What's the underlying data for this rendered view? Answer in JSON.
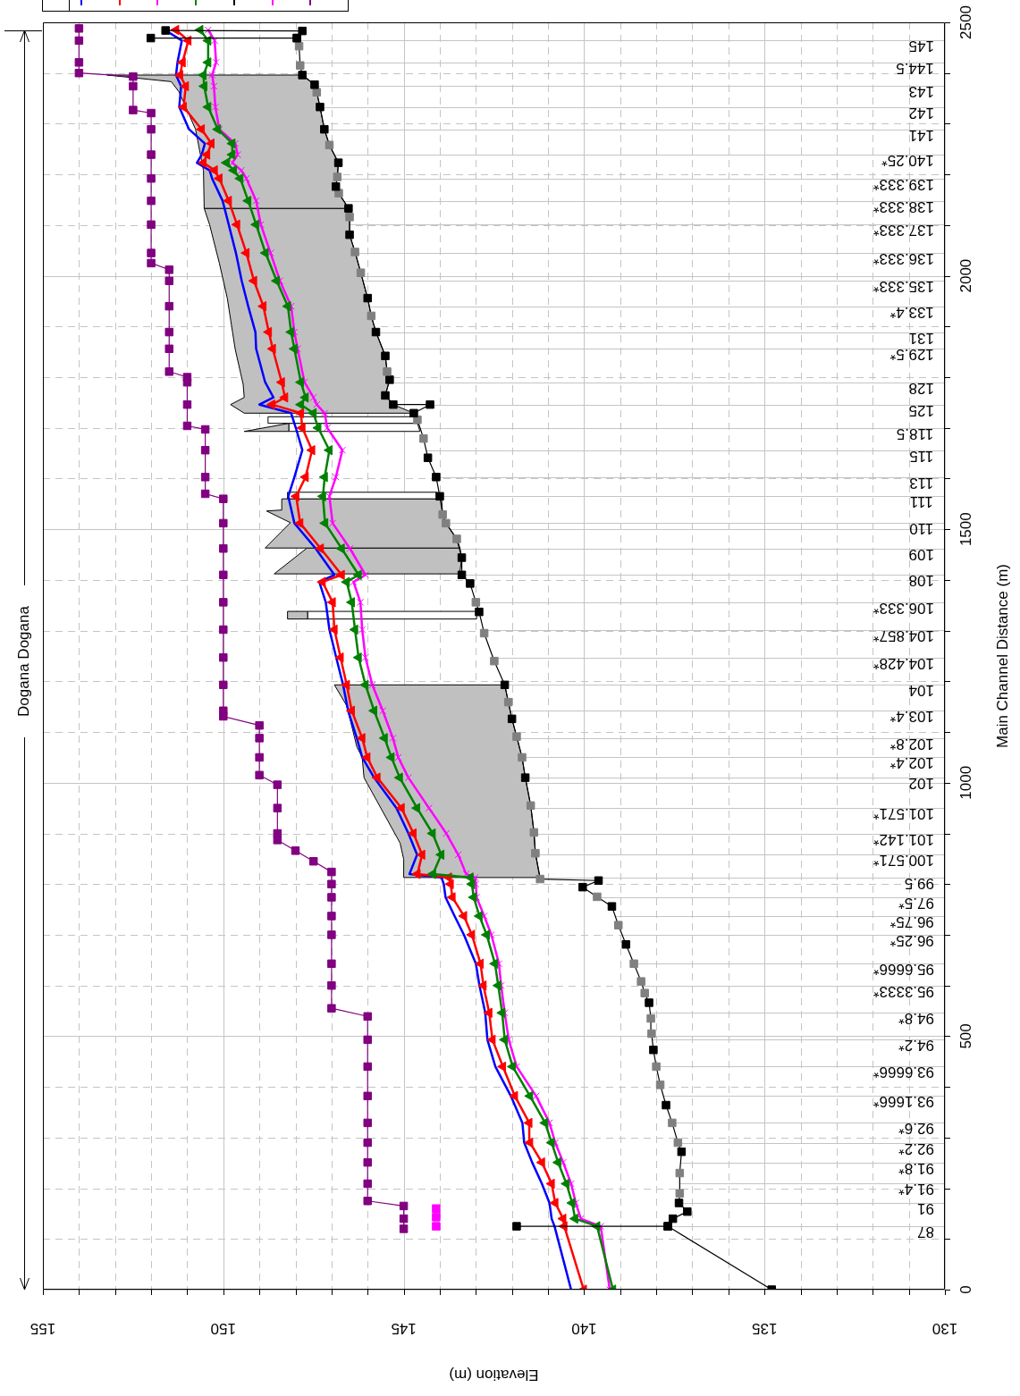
{
  "chart_data": {
    "type": "line",
    "xlabel": "Elevation (m)",
    "ylabel": "Main Channel Distance (m)",
    "annotations": [
      "Dogana Dogana",
      {
        "text": "87",
        "x": 130.53,
        "y": 125
      },
      {
        "text": "91",
        "x": 130.53,
        "y": 171
      },
      {
        "text": "91.4*",
        "x": 130.79,
        "y": 209
      },
      {
        "text": "91.8*",
        "x": 130.79,
        "y": 251
      },
      {
        "text": "92.2*",
        "x": 130.79,
        "y": 290
      },
      {
        "text": "92.6*",
        "x": 130.79,
        "y": 329
      },
      {
        "text": "93.1666*",
        "x": 131.14,
        "y": 382
      },
      {
        "text": "93.6666*",
        "x": 131.14,
        "y": 440
      },
      {
        "text": "94.2*",
        "x": 130.79,
        "y": 493
      },
      {
        "text": "94.8*",
        "x": 130.79,
        "y": 546
      },
      {
        "text": "95.3333*",
        "x": 131.14,
        "y": 600
      },
      {
        "text": "95.6666*",
        "x": 131.14,
        "y": 643
      },
      {
        "text": "96.25*",
        "x": 130.91,
        "y": 700
      },
      {
        "text": "96.75*",
        "x": 130.91,
        "y": 737
      },
      {
        "text": "97.5*",
        "x": 130.79,
        "y": 774
      },
      {
        "text": "99.5",
        "x": 130.71,
        "y": 813
      },
      {
        "text": "100.571*",
        "x": 131.14,
        "y": 858
      },
      {
        "text": "101.142*",
        "x": 131.14,
        "y": 900
      },
      {
        "text": "101.571*",
        "x": 131.14,
        "y": 950
      },
      {
        "text": "102",
        "x": 130.65,
        "y": 1010
      },
      {
        "text": "102.4*",
        "x": 130.91,
        "y": 1050
      },
      {
        "text": "102.8*",
        "x": 130.91,
        "y": 1088
      },
      {
        "text": "103.4*",
        "x": 130.91,
        "y": 1142
      },
      {
        "text": "104",
        "x": 130.65,
        "y": 1193
      },
      {
        "text": "104.428*",
        "x": 131.14,
        "y": 1247
      },
      {
        "text": "104.857*",
        "x": 131.14,
        "y": 1302
      },
      {
        "text": "106.333*",
        "x": 131.14,
        "y": 1356
      },
      {
        "text": "108",
        "x": 130.65,
        "y": 1410
      },
      {
        "text": "109",
        "x": 130.65,
        "y": 1462
      },
      {
        "text": "110",
        "x": 130.65,
        "y": 1512
      },
      {
        "text": "111",
        "x": 130.65,
        "y": 1565
      },
      {
        "text": "113",
        "x": 130.65,
        "y": 1603
      },
      {
        "text": "115",
        "x": 130.65,
        "y": 1656
      },
      {
        "text": "118.5",
        "x": 130.83,
        "y": 1700
      },
      {
        "text": "125",
        "x": 130.65,
        "y": 1746
      },
      {
        "text": "128",
        "x": 130.65,
        "y": 1790
      },
      {
        "text": "129.5*",
        "x": 130.91,
        "y": 1856
      },
      {
        "text": "131",
        "x": 130.65,
        "y": 1889
      },
      {
        "text": "133.4*",
        "x": 130.91,
        "y": 1940
      },
      {
        "text": "135.333*",
        "x": 131.14,
        "y": 1990
      },
      {
        "text": "136.333*",
        "x": 131.14,
        "y": 2045
      },
      {
        "text": "137.333*",
        "x": 131.14,
        "y": 2101
      },
      {
        "text": "138.333*",
        "x": 131.14,
        "y": 2148
      },
      {
        "text": "139.333*",
        "x": 131.14,
        "y": 2192
      },
      {
        "text": "140.25*",
        "x": 131.03,
        "y": 2239
      },
      {
        "text": "141",
        "x": 130.65,
        "y": 2289
      },
      {
        "text": "142",
        "x": 130.65,
        "y": 2333
      },
      {
        "text": "143",
        "x": 130.65,
        "y": 2374
      },
      {
        "text": "144.5",
        "x": 130.83,
        "y": 2421
      },
      {
        "text": "145",
        "x": 130.65,
        "y": 2464
      }
    ],
    "series": [
      {
        "color": "#0000ff",
        "marker": "none",
        "x": [
          140.36,
          140.82,
          140.9,
          140.96,
          141.17,
          141.44,
          141.66,
          141.71,
          142.03,
          142.46,
          142.68,
          142.74,
          142.9,
          143.0,
          143.33,
          143.59,
          143.84,
          143.89,
          143.95,
          144.84,
          144.63,
          144.87,
          145.2,
          145.82,
          146.15,
          146.3,
          146.54,
          146.68,
          146.87,
          147.06,
          147.16,
          147.34,
          146.92,
          147.44,
          148.03,
          148.2,
          148.03,
          147.81,
          147.99,
          148.12,
          149.0,
          148.61,
          148.84,
          149.09,
          149.11,
          149.31,
          149.49,
          149.65,
          149.85,
          150.02,
          150.31,
          150.38,
          150.73,
          150.6,
          150.51,
          150.95,
          151.22,
          151.17,
          151.31,
          151.27,
          151.15,
          151.62
        ],
        "values": [
          0,
          125,
          140,
          171,
          209,
          251,
          290,
          329,
          382,
          440,
          493,
          546,
          600,
          643,
          700,
          737,
          774,
          800,
          813,
          820,
          858,
          900,
          950,
          1010,
          1050,
          1088,
          1142,
          1193,
          1247,
          1302,
          1356,
          1396,
          1410,
          1462,
          1512,
          1565,
          1603,
          1656,
          1700,
          1729,
          1746,
          1760,
          1790,
          1856,
          1889,
          1940,
          1990,
          2045,
          2101,
          2148,
          2192,
          2208,
          2223,
          2239,
          2261,
          2289,
          2333,
          2374,
          2396,
          2421,
          2464,
          2485
        ]
      },
      {
        "color": "#ff0000",
        "marker": "triangle",
        "x": [
          140.01,
          140.55,
          140.58,
          140.8,
          140.9,
          141.17,
          141.5,
          141.52,
          141.92,
          142.25,
          142.54,
          142.63,
          142.79,
          142.87,
          143.11,
          143.33,
          143.65,
          143.7,
          143.75,
          144.62,
          144.49,
          144.73,
          145.06,
          145.73,
          146.01,
          146.15,
          146.44,
          146.58,
          146.75,
          146.92,
          146.97,
          147.25,
          146.72,
          147.3,
          147.87,
          147.98,
          147.72,
          147.54,
          147.81,
          147.85,
          148.65,
          148.29,
          148.38,
          148.63,
          148.74,
          148.89,
          149.15,
          149.36,
          149.62,
          149.85,
          150.11,
          150.24,
          150.55,
          150.45,
          150.33,
          150.6,
          151.1,
          151.04,
          151.2,
          151.13,
          150.97,
          151.31
        ],
        "values": [
          0,
          125,
          140,
          171,
          209,
          251,
          290,
          329,
          382,
          440,
          493,
          546,
          600,
          643,
          700,
          737,
          774,
          800,
          813,
          820,
          858,
          900,
          950,
          1010,
          1050,
          1088,
          1142,
          1193,
          1247,
          1302,
          1356,
          1396,
          1410,
          1462,
          1512,
          1565,
          1603,
          1656,
          1700,
          1729,
          1746,
          1760,
          1790,
          1856,
          1889,
          1940,
          1990,
          2045,
          2101,
          2148,
          2192,
          2208,
          2223,
          2239,
          2261,
          2289,
          2333,
          2374,
          2396,
          2421,
          2464,
          2485
        ]
      },
      {
        "color": "#ff00ff",
        "marker": "cross",
        "x": [
          139.29,
          139.54,
          140.09,
          140.23,
          140.36,
          140.58,
          140.8,
          140.96,
          141.33,
          141.87,
          142.09,
          142.2,
          142.3,
          142.36,
          142.57,
          142.77,
          142.98,
          143.0,
          143.02,
          143.27,
          143.49,
          143.82,
          144.3,
          144.87,
          145.15,
          145.3,
          145.58,
          145.87,
          146.06,
          146.15,
          146.2,
          146.39,
          146.06,
          146.49,
          146.97,
          147.06,
          146.88,
          146.7,
          147.12,
          147.19,
          147.41,
          147.5,
          147.75,
          147.94,
          148.03,
          148.12,
          148.43,
          148.69,
          148.96,
          149.09,
          149.36,
          149.5,
          149.75,
          149.6,
          149.67,
          150.11,
          150.22,
          150.26,
          150.31,
          150.2,
          150.24,
          150.42
        ],
        "values": [
          0,
          125,
          140,
          171,
          209,
          251,
          290,
          329,
          382,
          440,
          493,
          546,
          600,
          643,
          700,
          737,
          774,
          800,
          813,
          820,
          858,
          900,
          950,
          1010,
          1050,
          1088,
          1142,
          1193,
          1247,
          1302,
          1356,
          1396,
          1410,
          1462,
          1512,
          1565,
          1603,
          1656,
          1700,
          1729,
          1746,
          1760,
          1790,
          1856,
          1889,
          1940,
          1990,
          2045,
          2101,
          2148,
          2192,
          2208,
          2223,
          2239,
          2261,
          2289,
          2333,
          2374,
          2396,
          2421,
          2464,
          2485
        ]
      },
      {
        "color": "#008000",
        "marker": "triangle",
        "x": [
          139.2,
          139.64,
          140.25,
          140.33,
          140.49,
          140.72,
          140.9,
          141.08,
          141.5,
          141.98,
          142.2,
          142.27,
          142.38,
          142.47,
          142.7,
          142.9,
          143.06,
          143.11,
          143.15,
          144.19,
          143.96,
          144.2,
          144.63,
          145.11,
          145.34,
          145.53,
          145.82,
          146.06,
          146.25,
          146.35,
          146.44,
          146.58,
          146.25,
          146.72,
          147.18,
          147.24,
          147.19,
          147.06,
          147.37,
          147.5,
          147.85,
          147.72,
          147.85,
          148.03,
          148.12,
          148.21,
          148.52,
          148.83,
          149.09,
          149.31,
          149.53,
          149.71,
          149.91,
          149.75,
          149.75,
          150.15,
          150.42,
          150.53,
          150.55,
          150.42,
          150.42,
          150.64
        ],
        "values": [
          0,
          125,
          140,
          171,
          209,
          251,
          290,
          329,
          382,
          440,
          493,
          546,
          600,
          643,
          700,
          737,
          774,
          800,
          813,
          820,
          858,
          900,
          950,
          1010,
          1050,
          1088,
          1142,
          1193,
          1247,
          1302,
          1356,
          1396,
          1410,
          1462,
          1512,
          1565,
          1603,
          1656,
          1700,
          1729,
          1746,
          1760,
          1790,
          1856,
          1889,
          1940,
          1990,
          2045,
          2101,
          2148,
          2192,
          2208,
          2223,
          2239,
          2261,
          2289,
          2333,
          2374,
          2396,
          2421,
          2464,
          2485
        ]
      },
      {
        "color": "#000000",
        "marker": "square",
        "x": [
          134.8,
          137.68,
          141.87,
          137.68,
          137.54,
          137.14,
          137.37,
          137.35,
          137.35,
          137.3,
          137.4,
          137.56,
          137.73,
          137.89,
          138.0,
          138.08,
          138.13,
          138.15,
          138.2,
          138.32,
          138.42,
          138.62,
          138.84,
          139.05,
          139.23,
          139.64,
          140.04,
          139.6,
          141.22,
          141.35,
          141.39,
          141.48,
          141.63,
          141.72,
          141.87,
          142.0,
          142.1,
          142.2,
          142.49,
          142.77,
          142.91,
          143.0,
          143.16,
          143.39,
          143.39,
          143.53,
          143.83,
          143.92,
          144.0,
          144.1,
          144.33,
          144.45,
          144.62,
          144.72,
          144.27,
          145.29,
          145.51,
          145.39,
          145.46,
          145.51,
          145.77,
          145.9,
          146.0,
          146.19,
          146.35,
          146.5,
          146.5,
          146.53,
          146.8,
          146.88,
          146.84,
          146.81,
          147.06,
          147.2,
          147.32,
          147.41,
          147.47,
          147.81,
          147.87,
          147.9,
          147.96,
          152.01,
          147.96,
          147.81,
          151.6
        ],
        "values": [
          0,
          125,
          125,
          125,
          140,
          154,
          171,
          190,
          230,
          272,
          290,
          329,
          364,
          404,
          440,
          473,
          505,
          535,
          566,
          585,
          608,
          643,
          681,
          719,
          756,
          775,
          794,
          807,
          810,
          861,
          902,
          955,
          1010,
          1050,
          1091,
          1126,
          1159,
          1193,
          1240,
          1295,
          1337,
          1356,
          1393,
          1410,
          1444,
          1481,
          1512,
          1529,
          1565,
          1603,
          1641,
          1679,
          1716,
          1729,
          1746,
          1746,
          1764,
          1795,
          1811,
          1842,
          1889,
          1921,
          1956,
          2006,
          2047,
          2081,
          2116,
          2133,
          2163,
          2176,
          2195,
          2223,
          2258,
          2289,
          2333,
          2362,
          2377,
          2396,
          2415,
          2453,
          2469,
          2469,
          2469,
          2483,
          2484
        ],
        "colors": [
          "#000000",
          "#000000",
          "#000000",
          "#000000",
          "#000000",
          "#000000",
          "#000000",
          "#808080",
          "#808080",
          "#000000",
          "#808080",
          "#808080",
          "#000000",
          "#808080",
          "#808080",
          "#000000",
          "#808080",
          "#808080",
          "#000000",
          "#808080",
          "#808080",
          "#808080",
          "#000000",
          "#808080",
          "#000000",
          "#808080",
          "#000000",
          "#000000",
          "#808080",
          "#808080",
          "#808080",
          "#808080",
          "#000000",
          "#808080",
          "#808080",
          "#000000",
          "#808080",
          "#000000",
          "#808080",
          "#808080",
          "#000000",
          "#808080",
          "#000000",
          "#000000",
          "#000000",
          "#808080",
          "#808080",
          "#808080",
          "#000000",
          "#000000",
          "#000000",
          "#808080",
          "#808080",
          "#000000",
          "#000000",
          "#000000",
          "#000000",
          "#000000",
          "#808080",
          "#000000",
          "#000000",
          "#808080",
          "#000000",
          "#808080",
          "#808080",
          "#000000",
          "#808080",
          "#000000",
          "#808080",
          "#000000",
          "#808080",
          "#000000",
          "#808080",
          "#000000",
          "#000000",
          "#808080",
          "#000000",
          "#000000",
          "#808080",
          "#808080",
          "#000000",
          "#000000",
          "#000000",
          "#000000",
          "#000000"
        ]
      },
      {
        "type": "scatter",
        "color": "#ff00ff",
        "marker": "square",
        "x": [
          144.1,
          144.1,
          144.1
        ],
        "values": [
          125,
          143,
          160
        ]
      },
      {
        "color": "#800080",
        "marker": "square",
        "x": [
          145,
          145,
          145,
          146,
          146,
          146,
          146,
          146,
          146,
          146,
          146,
          146,
          147,
          147,
          147,
          147,
          147,
          147,
          147,
          147,
          147.5,
          148,
          148.5,
          148.5,
          148.5,
          148.5,
          149,
          149,
          149,
          149,
          150,
          150,
          150,
          150,
          150,
          150,
          150,
          150,
          150,
          150,
          150.5,
          150.5,
          150.5,
          150.5,
          151,
          151,
          151,
          151,
          151.5,
          151.5,
          151.5,
          151.5,
          151.5,
          151.5,
          152,
          152,
          152,
          152,
          152,
          152,
          152,
          152,
          152.5,
          152.5,
          152.5,
          154,
          154,
          154,
          154
        ],
        "values": [
          120,
          140,
          165,
          175,
          209,
          251,
          290,
          329,
          382,
          440,
          493,
          539,
          555,
          600,
          643,
          700,
          737,
          774,
          800,
          824,
          845,
          866,
          887,
          900,
          950,
          996,
          1015,
          1050,
          1088,
          1113,
          1131,
          1142,
          1193,
          1247,
          1302,
          1356,
          1410,
          1462,
          1512,
          1560,
          1570,
          1603,
          1656,
          1697,
          1704,
          1746,
          1790,
          1800,
          1811,
          1856,
          1889,
          1940,
          1990,
          2012,
          2025,
          2045,
          2101,
          2148,
          2192,
          2239,
          2289,
          2321,
          2327,
          2374,
          2393,
          2400,
          2421,
          2464,
          2488
        ]
      },
      {
        "type": "area",
        "color": "#c0c0c0",
        "x": [
          145.0,
          145.0,
          145.1,
          146.1,
          146.15,
          146.3,
          146.58,
          146.92,
          142.2,
          142.1,
          142.0,
          141.87,
          141.72,
          141.63,
          141.48,
          141.39,
          141.35,
          141.22
        ],
        "values": [
          813,
          849,
          881,
          1010,
          1050,
          1071,
          1152,
          1193,
          1193,
          1159,
          1126,
          1091,
          1050,
          1010,
          955,
          902,
          861,
          813
        ]
      },
      {
        "type": "area",
        "color": "#c0c0c0",
        "x": [
          147.68,
          148.59,
          143.45,
          143.39,
          143.44
        ],
        "values": [
          1463,
          1412,
          1412,
          1444,
          1463
        ]
      },
      {
        "type": "area",
        "color": "#c0c0c0",
        "x": [
          148.38,
          148.38,
          148.8,
          148.14,
          148.84,
          143.44,
          143.53,
          143.83,
          143.92,
          143.95
        ],
        "values": [
          1560,
          1538,
          1536,
          1513,
          1463,
          1463,
          1481,
          1512,
          1529,
          1560
        ]
      },
      {
        "type": "area",
        "color": "#c0c0c0",
        "x": [
          148.22,
          147.66,
          147.66,
          148.22
        ],
        "values": [
          1338,
          1338,
          1323,
          1323
        ]
      },
      {
        "type": "area",
        "color": "#ffffff",
        "x": [
          147.66,
          142.98,
          142.98,
          147.66
        ],
        "values": [
          1338,
          1338,
          1323,
          1323
        ]
      },
      {
        "type": "area",
        "color": "#ffffff",
        "x": [
          148.22,
          144.08,
          144.08,
          148.22
        ],
        "values": [
          1573,
          1573,
          1560,
          1560
        ]
      },
      {
        "type": "area",
        "color": "#c0c0c0",
        "x": [
          149.42,
          148.18,
          148.18
        ],
        "values": [
          1693,
          1709,
          1693
        ]
      },
      {
        "type": "area",
        "color": "#ffffff",
        "x": [
          148.18,
          144.62,
          144.55,
          148.18
        ],
        "values": [
          1709,
          1709,
          1693,
          1693
        ]
      },
      {
        "type": "area",
        "color": "#ffffff",
        "x": [
          148.76,
          144.68,
          144.62,
          148.76
        ],
        "values": [
          1722,
          1722,
          1709,
          1709
        ]
      },
      {
        "type": "area",
        "color": "#c0c0c0",
        "x": [
          149.42,
          149.8,
          149.42,
          149.45,
          149.67,
          149.89,
          150.11,
          150.38,
          150.53,
          146.53,
          146.5,
          146.5,
          146.35,
          146.19,
          146.0,
          145.9,
          145.77,
          145.51,
          145.46,
          145.39,
          145.51,
          145.29,
          144.72
        ],
        "values": [
          1729,
          1746,
          1760,
          1786,
          1855,
          1956,
          2025,
          2101,
          2133,
          2133,
          2116,
          2081,
          2047,
          2006,
          1956,
          1921,
          1889,
          1842,
          1811,
          1795,
          1764,
          1746,
          1729
        ]
      },
      {
        "type": "area",
        "color": "#c0c0c0",
        "x": [
          150.53,
          150.55,
          150.77,
          151.04,
          151.23,
          151.44,
          153.22,
          147.81,
          147.47,
          147.41,
          147.32,
          147.2,
          147.06,
          146.81,
          146.84,
          146.88,
          146.8,
          146.53
        ],
        "values": [
          2133,
          2208,
          2289,
          2333,
          2363,
          2383,
          2396,
          2396,
          2377,
          2362,
          2333,
          2289,
          2258,
          2223,
          2195,
          2176,
          2163,
          2133
        ]
      }
    ],
    "xlim": [
      155,
      130
    ],
    "xticks": [
      130,
      {
        "value": 131,
        "label": null
      },
      {
        "value": 132,
        "label": null
      },
      {
        "value": 133,
        "label": null
      },
      {
        "value": 134,
        "label": null
      },
      135,
      {
        "value": 136,
        "label": null
      },
      {
        "value": 137,
        "label": null
      },
      {
        "value": 138,
        "label": null
      },
      {
        "value": 139,
        "label": null
      },
      140,
      {
        "value": 141,
        "label": null
      },
      {
        "value": 142,
        "label": null
      },
      {
        "value": 143,
        "label": null
      },
      {
        "value": 144,
        "label": null
      },
      145,
      {
        "value": 146,
        "label": null
      },
      {
        "value": 147,
        "label": null
      },
      {
        "value": 148,
        "label": null
      },
      {
        "value": 149,
        "label": null
      },
      150,
      {
        "value": 151,
        "label": null
      },
      {
        "value": 152,
        "label": null
      },
      {
        "value": 153,
        "label": null
      },
      {
        "value": 154,
        "label": null
      },
      155
    ],
    "ylim": [
      0,
      2500
    ],
    "yticks": [
      0,
      {
        "value": 100,
        "label": null
      },
      {
        "value": 200,
        "label": null
      },
      {
        "value": 300,
        "label": null
      },
      {
        "value": 400,
        "label": null
      },
      500,
      {
        "value": 600,
        "label": null
      },
      {
        "value": 700,
        "label": null
      },
      {
        "value": 800,
        "label": null
      },
      {
        "value": 900,
        "label": null
      },
      1000,
      {
        "value": 1100,
        "label": null
      },
      {
        "value": 1200,
        "label": null
      },
      {
        "value": 1300,
        "label": null
      },
      {
        "value": 1400,
        "label": null
      },
      1500,
      {
        "value": 1600,
        "label": null
      },
      {
        "value": 1700,
        "label": null
      },
      {
        "value": 1800,
        "label": null
      },
      {
        "value": 1900,
        "label": null
      },
      2000,
      {
        "value": 2100,
        "label": null
      },
      {
        "value": 2200,
        "label": null
      },
      {
        "value": 2300,
        "label": null
      },
      {
        "value": 2400,
        "label": null
      },
      2500
    ],
    "grid": true,
    "ref_lines": [
      {
        "axis": "y",
        "value": 125
      },
      {
        "axis": "y",
        "value": 171
      },
      {
        "axis": "y",
        "value": 209
      },
      {
        "axis": "y",
        "value": 251
      },
      {
        "axis": "y",
        "value": 290
      },
      {
        "axis": "y",
        "value": 329
      },
      {
        "axis": "y",
        "value": 382
      },
      {
        "axis": "y",
        "value": 440
      },
      {
        "axis": "y",
        "value": 493
      },
      {
        "axis": "y",
        "value": 546
      },
      {
        "axis": "y",
        "value": 600
      },
      {
        "axis": "y",
        "value": 643
      },
      {
        "axis": "y",
        "value": 700
      },
      {
        "axis": "y",
        "value": 737
      },
      {
        "axis": "y",
        "value": 774
      },
      {
        "axis": "y",
        "value": 813
      },
      {
        "axis": "y",
        "value": 858
      },
      {
        "axis": "y",
        "value": 900
      },
      {
        "axis": "y",
        "value": 950
      },
      {
        "axis": "y",
        "value": 1010
      },
      {
        "axis": "y",
        "value": 1050
      },
      {
        "axis": "y",
        "value": 1088
      },
      {
        "axis": "y",
        "value": 1142
      },
      {
        "axis": "y",
        "value": 1193
      },
      {
        "axis": "y",
        "value": 1247
      },
      {
        "axis": "y",
        "value": 1302
      },
      {
        "axis": "y",
        "value": 1356
      },
      {
        "axis": "y",
        "value": 1410
      },
      {
        "axis": "y",
        "value": 1462
      },
      {
        "axis": "y",
        "value": 1512
      },
      {
        "axis": "y",
        "value": 1565
      },
      {
        "axis": "y",
        "value": 1603
      },
      {
        "axis": "y",
        "value": 1656
      },
      {
        "axis": "y",
        "value": 1700
      },
      {
        "axis": "y",
        "value": 1746
      },
      {
        "axis": "y",
        "value": 1790
      },
      {
        "axis": "y",
        "value": 1856
      },
      {
        "axis": "y",
        "value": 1889
      },
      {
        "axis": "y",
        "value": 1940
      },
      {
        "axis": "y",
        "value": 1990
      },
      {
        "axis": "y",
        "value": 2045
      },
      {
        "axis": "y",
        "value": 2101
      },
      {
        "axis": "y",
        "value": 2148
      },
      {
        "axis": "y",
        "value": 2192
      },
      {
        "axis": "y",
        "value": 2239
      },
      {
        "axis": "y",
        "value": 2289
      },
      {
        "axis": "y",
        "value": 2333
      },
      {
        "axis": "y",
        "value": 2374
      },
      {
        "axis": "y",
        "value": 2421
      },
      {
        "axis": "y",
        "value": 2464
      }
    ]
  }
}
